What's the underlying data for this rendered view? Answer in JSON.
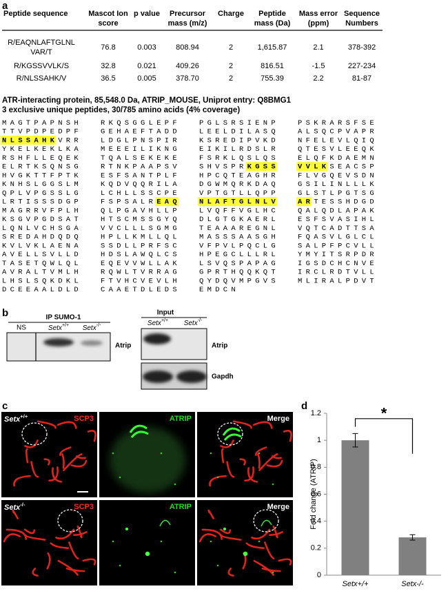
{
  "panel_a": {
    "label": "a",
    "table": {
      "headers": [
        [
          "Peptide sequence"
        ],
        [
          "Mascot Ion",
          "score"
        ],
        [
          "p value"
        ],
        [
          "Precursor",
          "mass (m/z)"
        ],
        [
          "Charge"
        ],
        [
          "Peptide",
          "mass (Da)"
        ],
        [
          "Mass error",
          "(ppm)"
        ],
        [
          "Sequence",
          "Numbers"
        ]
      ],
      "rows": [
        [
          [
            "R/EAQNLAFTGLNL",
            "VAR/T"
          ],
          "76.8",
          "0.003",
          "808.94",
          "2",
          "1,615.87",
          "2.1",
          "378-392"
        ],
        [
          [
            "R/KGSSVVLK/S"
          ],
          "32.8",
          "0.021",
          "409.26",
          "2",
          "816.51",
          "-1.5",
          "227-234"
        ],
        [
          [
            "R/NLSSAHK/V"
          ],
          "36.5",
          "0.005",
          "378.70",
          "2",
          "755.39",
          "2.2",
          "81-87"
        ]
      ]
    },
    "protein_info": [
      "ATR-interacting protein, 85,548.0 Da, ATRIP_MOUSE, Uniprot entry: Q8BMG1",
      "3 exclusive unique peptides, 30/785 amino acids (4% coverage)"
    ],
    "sequence": [
      [
        "MAGTPAPNSH",
        "RKQSGGLEPF",
        "PGLSRSIENP",
        "PSKRARSFSE"
      ],
      [
        "TTVPDPEDPF",
        "GEHAEFTADD",
        "LEELDILASQ",
        "ALSQCPVAPR"
      ],
      [
        [
          {
            "text": "NLSSAHK",
            "highlight": true
          },
          "VRR"
        ],
        "LDGLPNSPIR",
        "KSREDIPVKD",
        "NFELEVLQIQ"
      ],
      [
        "YKELKEKLKA",
        "MEEEILIKNG",
        "EIKILRDSLR",
        "QTESVLEEQK"
      ],
      [
        "RSHFLLEQEK",
        "TQALSEKEKE",
        "FSRKLQSLQS",
        "ELQFKDAEMN"
      ],
      [
        "ELRTKSQNSG",
        "RTNKPAAPSV",
        [
          "SHVSPR",
          {
            "text": "KGSS",
            "highlight": true
          }
        ],
        [
          {
            "text": "VVLK",
            "highlight": true
          },
          "SEACSP"
        ]
      ],
      [
        "HVGKTTFPTK",
        "ESFSANTPLF",
        "HPCQTEAGHR",
        "FLVGQEVSDN"
      ],
      [
        "KNHSLGGSLM",
        "KQDVQQRILA",
        "DGWMQRKDAQ",
        "GSILINLLLK"
      ],
      [
        "QPLVPGSSLG",
        "LCHLLSSCPE",
        "VPTGTLLQPP",
        "GLSTLPGTSG"
      ],
      [
        "LRTISSSDGP",
        [
          "FSPSALR",
          {
            "text": "EAQ",
            "highlight": true
          }
        ],
        [
          {
            "text": "NLAFTGLNLV",
            "highlight": true
          }
        ],
        [
          {
            "text": "AR",
            "highlight": true
          },
          "TESSHDGD"
        ]
      ],
      [
        "MAGRRVFPLH",
        "QLPGAVHLLP",
        "LVQFFVGLHC",
        "QALQDLAPAK"
      ],
      [
        "KSGVPGDSAT",
        "HTSCMSSGYQ",
        "DLGTGKAERL",
        "ESFSVASIHL"
      ],
      [
        "LQNLVCHSGA",
        "VVCLLLSGMG",
        "TEAAAREGNL",
        "VQTCADTTSA"
      ],
      [
        "SREDAHDQDQ",
        "HPLLKMLLQL",
        "MASSSAASGH",
        "FQASVLGLCL"
      ],
      [
        "KVLVKLAENA",
        "SSDLLPRFSC",
        "VFPVLPQCLG",
        "SALPFPCVLL"
      ],
      [
        "AVELLSVLLD",
        "HDSLAWQLCS",
        "HPEGCLLLRL",
        "YMYITSRPDR"
      ],
      [
        "TASETQWLQL",
        "EQEVVWLLAK",
        "LSVQSPAPAG",
        "IGSDCHCNVE"
      ],
      [
        "AVRALTVMLH",
        "RQWLTVRRAG",
        "GPRTHQQKQT",
        "IRCLRDTVLL"
      ],
      [
        "LHSLSQKDKL",
        "FTVHCVEVLH",
        "QYDQVMPGVS",
        "MLIRALPDVT"
      ],
      [
        "DCEEAALDLD",
        "CAAETDLEDS",
        "EMDCN"
      ]
    ]
  },
  "panel_b": {
    "label": "b",
    "ip": {
      "title": "IP SUMO-1",
      "lanes": [
        "NS",
        {
          "gene": "Setx",
          "genotype": "+/+"
        },
        {
          "gene": "Setx",
          "genotype": "-/-"
        }
      ],
      "blots": [
        "Atrip"
      ]
    },
    "input": {
      "title": "Input",
      "lanes": [
        {
          "gene": "Setx",
          "genotype": "+/+"
        },
        {
          "gene": "Setx",
          "genotype": "-/-"
        }
      ],
      "blots": [
        "Atrip",
        "Gapdh"
      ]
    }
  },
  "panel_c": {
    "label": "c",
    "rows": [
      {
        "genotype": {
          "gene": "Setx",
          "genotype": "+/+"
        },
        "channels": [
          "SCP3",
          "ATRIP",
          "Merge"
        ]
      },
      {
        "genotype": {
          "gene": "Setx",
          "genotype": "-/-"
        },
        "channels": [
          "SCP3",
          "ATRIP",
          "Merge"
        ]
      }
    ]
  },
  "chart_data": {
    "type": "bar",
    "panel_label": "d",
    "ylabel": "Fold change (ATRIP)",
    "categories": [
      "Setx+/+",
      "Setx-/-"
    ],
    "values": [
      1.0,
      0.28
    ],
    "errors": [
      0.05,
      0.02
    ],
    "color": "#808080",
    "ylim": [
      0,
      1.2
    ],
    "yticks": [
      0,
      0.2,
      0.4,
      0.6,
      0.8,
      1,
      1.2
    ],
    "significance": "*"
  }
}
